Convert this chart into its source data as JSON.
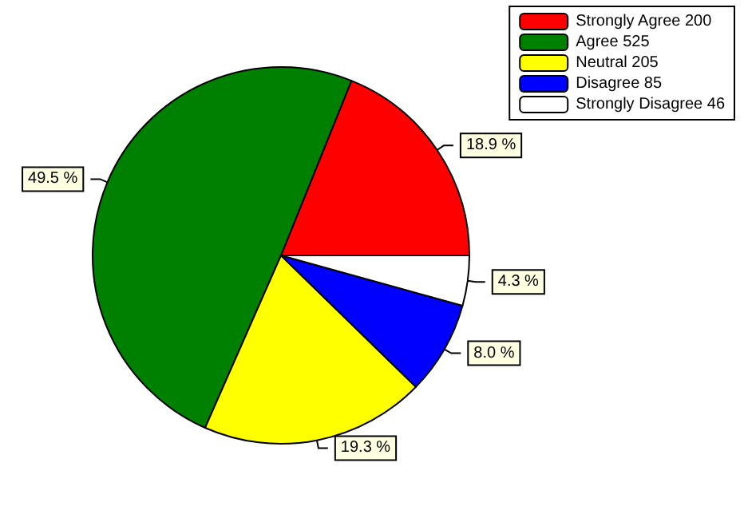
{
  "chart_data": {
    "type": "pie",
    "categories": [
      "Strongly Agree 200",
      "Agree 525",
      "Neutral 205",
      "Disagree 85",
      "Strongly Disagree 46"
    ],
    "values": [
      18.9,
      49.5,
      19.3,
      8.0,
      4.3
    ],
    "colors": [
      "#ff0000",
      "#008000",
      "#ffff00",
      "#0000ff",
      "#ffffff"
    ],
    "value_labels": [
      "18.9 %",
      "49.5 %",
      "19.3 %",
      "8.0 %",
      "4.3 %"
    ],
    "legend": "top right"
  }
}
